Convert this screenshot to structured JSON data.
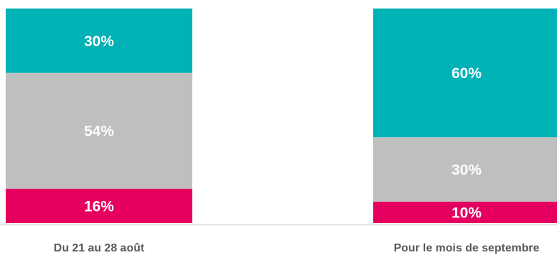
{
  "chart_data": {
    "type": "bar",
    "stacked": true,
    "percent": true,
    "ylim": [
      0,
      100
    ],
    "categories": [
      "Du 21 au 28 août",
      "Pour le mois de septembre"
    ],
    "series": [
      {
        "values": [
          16,
          10
        ],
        "labels": [
          "16%",
          "10%"
        ],
        "color": "#E5005F"
      },
      {
        "values": [
          54,
          30
        ],
        "labels": [
          "54%",
          "30%"
        ],
        "color": "#BFBFBF"
      },
      {
        "values": [
          30,
          60
        ],
        "labels": [
          "30%",
          "60%"
        ],
        "color": "#00B2B5"
      }
    ],
    "axis_color": "#D9D9D9",
    "label_color": "#FFFFFF",
    "category_label_color": "#595959"
  }
}
